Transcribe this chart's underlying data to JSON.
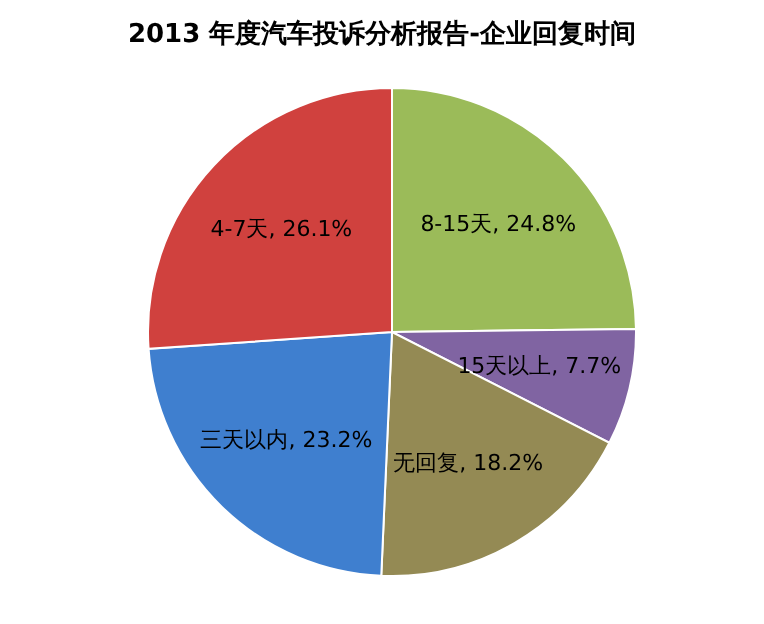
{
  "chart_data": {
    "type": "pie",
    "title": "2013 年度汽车投诉分析报告-企业回复时间",
    "categories": [
      "8-15天",
      "15天以上",
      "无回复",
      "三天以内",
      "4-7天"
    ],
    "values": [
      24.8,
      7.7,
      18.2,
      23.2,
      26.1
    ],
    "value_labels": [
      "24.8%",
      "7.7%",
      "18.2%",
      "23.2%",
      "26.1%"
    ],
    "colors": [
      "#9bbb59",
      "#8064a2",
      "#948a54",
      "#3f7fcf",
      "#d0413e"
    ],
    "legend": false
  }
}
